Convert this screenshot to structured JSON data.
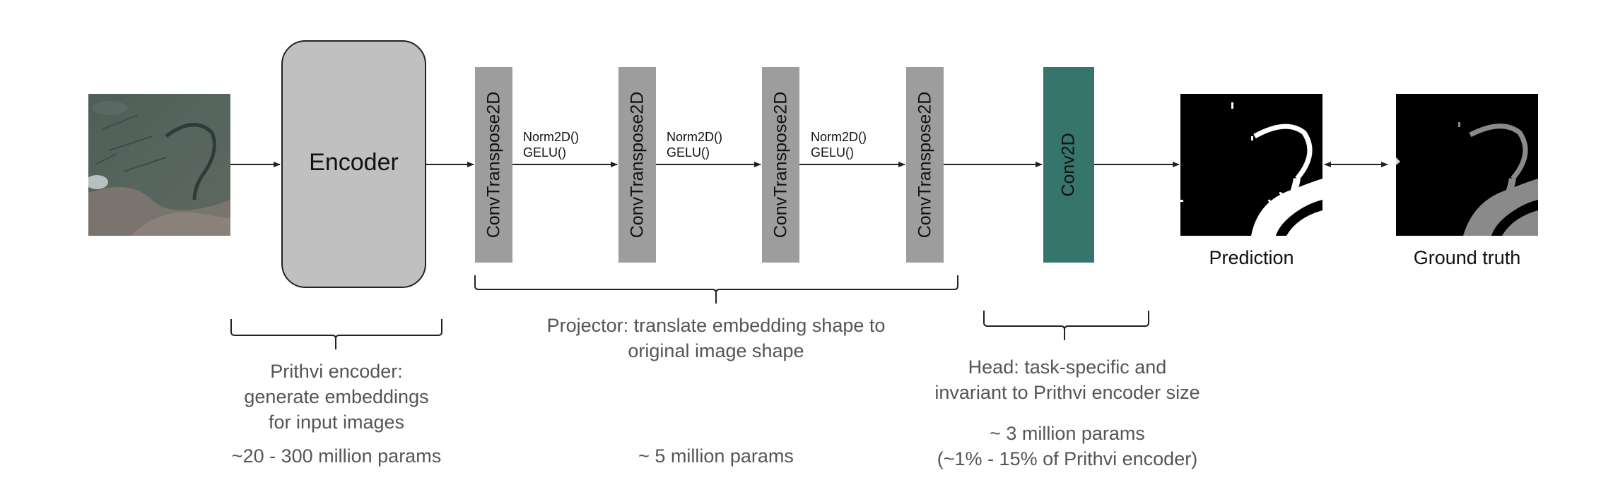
{
  "encoder": {
    "label": "Encoder"
  },
  "projector_layers": [
    {
      "label": "ConvTranspose2D"
    },
    {
      "label": "ConvTranspose2D"
    },
    {
      "label": "ConvTranspose2D"
    },
    {
      "label": "ConvTranspose2D"
    }
  ],
  "activations": [
    {
      "line1": "Norm2D()",
      "line2": "GELU()"
    },
    {
      "line1": "Norm2D()",
      "line2": "GELU()"
    },
    {
      "line1": "Norm2D()",
      "line2": "GELU()"
    }
  ],
  "head": {
    "label": "Conv2D",
    "color": "#35756b"
  },
  "outputs": {
    "prediction": "Prediction",
    "ground_truth": "Ground truth"
  },
  "annotations": {
    "encoder": {
      "line1": "Prithvi encoder:",
      "line2": "generate embeddings",
      "line3": "for input images",
      "params": "~20 - 300 million params"
    },
    "projector": {
      "line1": "Projector: translate embedding shape to",
      "line2": "original image shape",
      "params": "~ 5 million params"
    },
    "head": {
      "line1": "Head: task-specific and",
      "line2": "invariant to Prithvi encoder size",
      "params1": "~ 3 million params",
      "params2": "(~1% - 15% of Prithvi encoder)"
    }
  }
}
